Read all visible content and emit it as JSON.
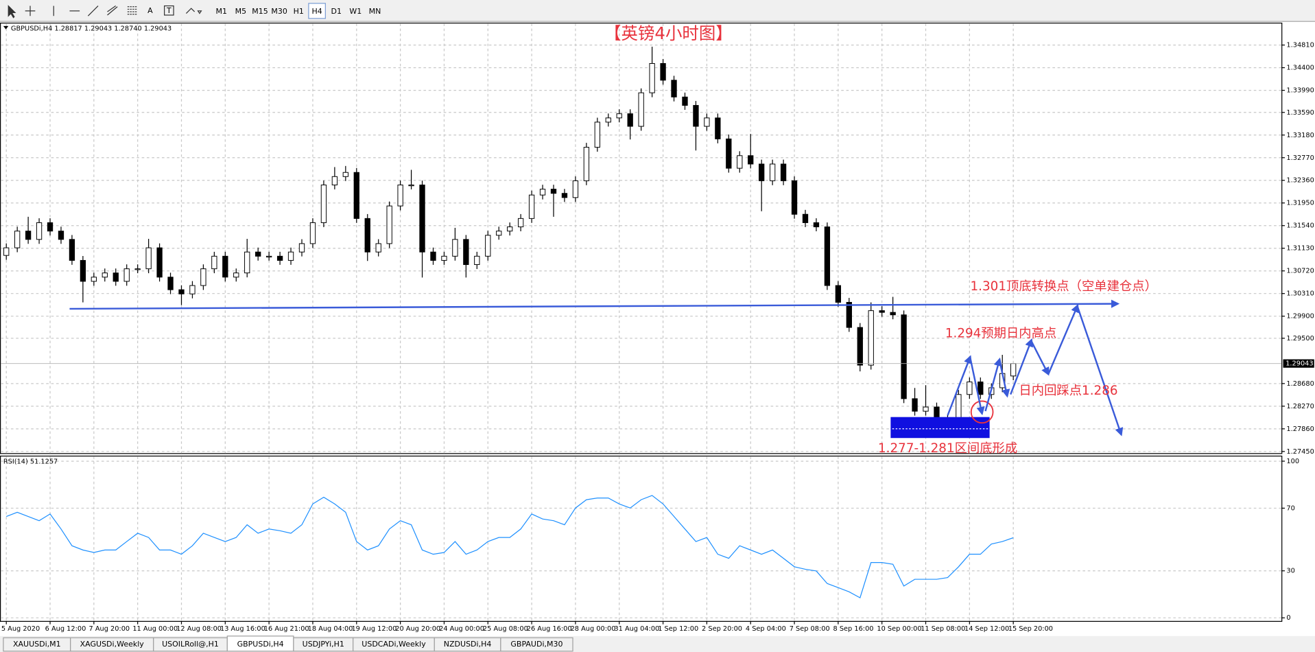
{
  "toolbar": {
    "tool_labels": [
      "A",
      "T"
    ],
    "timeframes": [
      "M1",
      "M5",
      "M15",
      "M30",
      "H1",
      "H4",
      "D1",
      "W1",
      "MN"
    ]
  },
  "tabs": [
    "XAUUSDi,M1",
    "XAGUSDi,Weekly",
    "USOILRoll@,H1",
    "GBPUSDi,H4",
    "USDJPYi,H1",
    "USDCADi,Weekly",
    "NZDUSDi,H4",
    "GBPAUDi,M30"
  ],
  "chart_data": [
    {
      "type": "candlestick",
      "title": "【英镑4小时图】",
      "header": "GBPUSDi,H4  1.28817 1.29043 1.28740 1.29043",
      "annotations": [
        "1.301顶底转换点（空单建仓点）",
        "1.294预期日内高点",
        "日内回踩点1.286",
        "1.277-1.281区间底形成"
      ],
      "up_color": "#ffffff",
      "down_color": "#000000",
      "wick_color": "#000000",
      "grid": true,
      "price_marker": {
        "value": 1.29043,
        "label": "1.29043"
      },
      "xlim": [
        -0.5,
        116.5
      ],
      "xticks": [
        {
          "value": 0,
          "label": "5 Aug 2020"
        },
        {
          "value": 4,
          "label": "6 Aug 12:00"
        },
        {
          "value": 8,
          "label": "7 Aug 20:00"
        },
        {
          "value": 12,
          "label": "11 Aug 00:00"
        },
        {
          "value": 16,
          "label": "12 Aug 08:00"
        },
        {
          "value": 20,
          "label": "13 Aug 16:00"
        },
        {
          "value": 24,
          "label": "16 Aug 21:00"
        },
        {
          "value": 28,
          "label": "18 Aug 04:00"
        },
        {
          "value": 32,
          "label": "19 Aug 12:00"
        },
        {
          "value": 36,
          "label": "20 Aug 20:00"
        },
        {
          "value": 40,
          "label": "24 Aug 00:00"
        },
        {
          "value": 44,
          "label": "25 Aug 08:00"
        },
        {
          "value": 48,
          "label": "26 Aug 16:00"
        },
        {
          "value": 52,
          "label": "28 Aug 00:00"
        },
        {
          "value": 56,
          "label": "31 Aug 04:00"
        },
        {
          "value": 60,
          "label": "1 Sep 12:00"
        },
        {
          "value": 64,
          "label": "2 Sep 20:00"
        },
        {
          "value": 68,
          "label": "4 Sep 04:00"
        },
        {
          "value": 72,
          "label": "7 Sep 08:00"
        },
        {
          "value": 76,
          "label": "8 Sep 16:00"
        },
        {
          "value": 80,
          "label": "10 Sep 00:00"
        },
        {
          "value": 84,
          "label": "11 Sep 08:00"
        },
        {
          "value": 88,
          "label": "14 Sep 12:00"
        },
        {
          "value": 92,
          "label": "15 Sep 20:00"
        }
      ],
      "ylim": [
        1.2742,
        1.352
      ],
      "yticks": [
        {
          "value": 1.3481,
          "label": "1.34810"
        },
        {
          "value": 1.344,
          "label": "1.34400"
        },
        {
          "value": 1.3399,
          "label": "1.33990"
        },
        {
          "value": 1.3359,
          "label": "1.33590"
        },
        {
          "value": 1.3318,
          "label": "1.33180"
        },
        {
          "value": 1.3277,
          "label": "1.32770"
        },
        {
          "value": 1.3236,
          "label": "1.32360"
        },
        {
          "value": 1.3195,
          "label": "1.31950"
        },
        {
          "value": 1.3154,
          "label": "1.31540"
        },
        {
          "value": 1.3113,
          "label": "1.31130"
        },
        {
          "value": 1.3072,
          "label": "1.30720"
        },
        {
          "value": 1.3031,
          "label": "1.30310"
        },
        {
          "value": 1.299,
          "label": "1.29900"
        },
        {
          "value": 1.295,
          "label": "1.29500"
        },
        {
          "value": 1.2868,
          "label": "1.28680"
        },
        {
          "value": 1.2827,
          "label": "1.28270"
        },
        {
          "value": 1.2786,
          "label": "1.27860"
        },
        {
          "value": 1.2745,
          "label": "1.27450"
        }
      ],
      "open": [
        1.31,
        1.31138,
        1.31441,
        1.3129,
        1.31593,
        1.31441,
        1.3129,
        1.3091,
        1.30531,
        1.30607,
        1.30683,
        1.30531,
        1.30758,
        1.30758,
        1.31138,
        1.30607,
        1.30379,
        1.30303,
        1.30455,
        1.30758,
        1.30986,
        1.30607,
        1.30683,
        1.31062,
        1.30986,
        1.30986,
        1.3091,
        1.31062,
        1.31214,
        1.31593,
        1.32276,
        1.32428,
        1.32503,
        1.31669,
        1.31062,
        1.31214,
        1.31896,
        1.32276,
        1.32276,
        1.31062,
        1.3091,
        1.30986,
        1.3129,
        1.30834,
        1.30986,
        1.31365,
        1.31441,
        1.31517,
        1.31669,
        1.32094,
        1.322,
        1.32124,
        1.32048,
        1.32352,
        1.32959,
        1.33414,
        1.3349,
        1.33566,
        1.33338,
        1.33945,
        1.34476,
        1.34173,
        1.33869,
        1.33717,
        1.33338,
        1.3349,
        1.3311,
        1.32579,
        1.32807,
        1.32655,
        1.32352,
        1.32655,
        1.32352,
        1.31745,
        1.31593,
        1.31517,
        1.30455,
        1.30151,
        1.29696,
        1.29013,
        1.3,
        1.29969,
        1.29924,
        1.28406,
        1.28179,
        1.28255,
        1.27951,
        1.28027,
        1.28482,
        1.2871,
        1.28482,
        1.28604,
        1.28817
      ],
      "high": [
        1.31218,
        1.31521,
        1.317,
        1.31673,
        1.31673,
        1.31521,
        1.3137,
        1.3099,
        1.30687,
        1.30763,
        1.30763,
        1.30838,
        1.30838,
        1.313,
        1.31218,
        1.30687,
        1.30459,
        1.30535,
        1.30838,
        1.31066,
        1.31066,
        1.30763,
        1.313,
        1.31142,
        1.31066,
        1.31066,
        1.31142,
        1.31294,
        1.31673,
        1.32356,
        1.326,
        1.3262,
        1.32583,
        1.31749,
        1.31294,
        1.31976,
        1.32356,
        1.3255,
        1.32356,
        1.31142,
        1.31066,
        1.315,
        1.3137,
        1.31066,
        1.31445,
        1.31521,
        1.31597,
        1.31749,
        1.32174,
        1.3228,
        1.3228,
        1.32204,
        1.32432,
        1.33039,
        1.33494,
        1.3357,
        1.33646,
        1.33646,
        1.34025,
        1.3478,
        1.34556,
        1.34253,
        1.33949,
        1.33797,
        1.3357,
        1.3357,
        1.3319,
        1.32887,
        1.332,
        1.32735,
        1.32735,
        1.32735,
        1.32432,
        1.31825,
        1.31673,
        1.31597,
        1.30535,
        1.30231,
        1.29776,
        1.3015,
        1.3008,
        1.3025,
        1.30004,
        1.286,
        1.2865,
        1.28335,
        1.28107,
        1.28562,
        1.2879,
        1.2879,
        1.28684,
        1.292,
        1.29043
      ],
      "low": [
        1.3092,
        1.31058,
        1.3121,
        1.3121,
        1.31361,
        1.3121,
        1.3083,
        1.3015,
        1.30451,
        1.30527,
        1.30451,
        1.30451,
        1.30678,
        1.30678,
        1.30527,
        1.30299,
        1.301,
        1.30223,
        1.30375,
        1.30678,
        1.30527,
        1.30527,
        1.30603,
        1.30906,
        1.30906,
        1.3083,
        1.3083,
        1.30982,
        1.31134,
        1.31513,
        1.32196,
        1.32348,
        1.31589,
        1.309,
        1.30982,
        1.31134,
        1.31816,
        1.32196,
        1.306,
        1.3083,
        1.3083,
        1.30906,
        1.306,
        1.30754,
        1.30906,
        1.31285,
        1.31361,
        1.31437,
        1.31589,
        1.32014,
        1.317,
        1.31968,
        1.31968,
        1.32272,
        1.32879,
        1.33334,
        1.3341,
        1.331,
        1.33258,
        1.33865,
        1.34093,
        1.33789,
        1.33637,
        1.329,
        1.33258,
        1.3303,
        1.32499,
        1.32499,
        1.32575,
        1.318,
        1.32272,
        1.32272,
        1.31665,
        1.31513,
        1.31437,
        1.30375,
        1.30071,
        1.29616,
        1.289,
        1.28933,
        1.29889,
        1.29844,
        1.28326,
        1.28099,
        1.28099,
        1.278,
        1.27871,
        1.27947,
        1.28402,
        1.28402,
        1.28402,
        1.28524,
        1.2874
      ],
      "close": [
        1.31138,
        1.31441,
        1.3129,
        1.31593,
        1.31441,
        1.3129,
        1.3091,
        1.30531,
        1.30607,
        1.30683,
        1.30531,
        1.30758,
        1.30758,
        1.31138,
        1.30607,
        1.30379,
        1.30303,
        1.30455,
        1.30758,
        1.30986,
        1.30607,
        1.30683,
        1.31062,
        1.30986,
        1.30986,
        1.3091,
        1.31062,
        1.31214,
        1.31593,
        1.32276,
        1.32428,
        1.32503,
        1.31669,
        1.31062,
        1.31214,
        1.31896,
        1.32276,
        1.32276,
        1.31062,
        1.3091,
        1.30986,
        1.3129,
        1.30834,
        1.30986,
        1.31365,
        1.31441,
        1.31517,
        1.31669,
        1.32094,
        1.322,
        1.32124,
        1.32048,
        1.32352,
        1.32959,
        1.33414,
        1.3349,
        1.33566,
        1.33338,
        1.33945,
        1.34476,
        1.34173,
        1.33869,
        1.33717,
        1.33338,
        1.3349,
        1.3311,
        1.32579,
        1.32807,
        1.32655,
        1.32352,
        1.32655,
        1.32352,
        1.31745,
        1.31593,
        1.31517,
        1.30455,
        1.30151,
        1.29696,
        1.29013,
        1.3,
        1.29969,
        1.29924,
        1.28406,
        1.28179,
        1.28255,
        1.27951,
        1.28027,
        1.28482,
        1.2871,
        1.28482,
        1.28604,
        1.28862,
        1.29043
      ]
    },
    {
      "type": "line",
      "label": "RSI(14) 51.1257",
      "color": "#1e90ff",
      "grid": true,
      "ylim": [
        -2,
        103
      ],
      "yticks": [
        0,
        30,
        70,
        100
      ],
      "values": [
        64.7,
        67.4,
        64.7,
        62.0,
        66.3,
        56.7,
        46.0,
        43.3,
        41.7,
        43.3,
        43.3,
        48.7,
        54.0,
        51.3,
        43.3,
        43.3,
        40.6,
        46.0,
        54.0,
        51.3,
        48.7,
        51.3,
        59.4,
        54.0,
        56.7,
        55.6,
        54.0,
        59.4,
        72.7,
        77.0,
        72.7,
        67.4,
        48.7,
        43.3,
        46.0,
        56.7,
        62.0,
        59.4,
        43.3,
        40.6,
        41.7,
        48.7,
        40.6,
        43.3,
        48.7,
        51.3,
        51.3,
        56.7,
        66.3,
        63.1,
        62.0,
        59.4,
        70.1,
        75.4,
        76.5,
        76.5,
        72.7,
        70.1,
        75.4,
        78.1,
        72.7,
        64.7,
        56.7,
        48.7,
        51.3,
        40.6,
        38.0,
        46.0,
        43.3,
        40.6,
        43.3,
        38.0,
        32.6,
        31.0,
        29.9,
        21.9,
        19.3,
        16.6,
        12.8,
        35.3,
        35.3,
        34.2,
        20.3,
        24.6,
        24.6,
        24.6,
        25.7,
        32.6,
        40.6,
        40.6,
        47.1,
        48.7,
        51.1257
      ]
    }
  ]
}
